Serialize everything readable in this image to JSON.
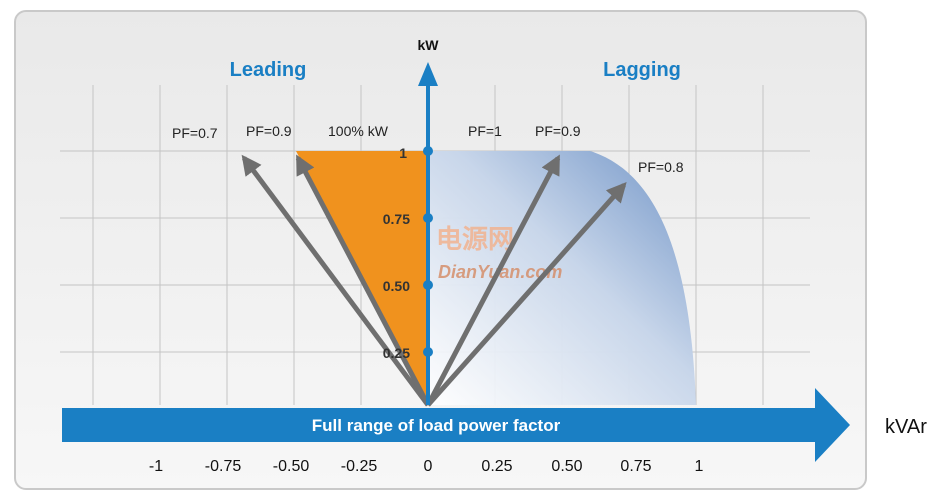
{
  "titles": {
    "leading": "Leading",
    "lagging": "Lagging"
  },
  "axis": {
    "y_label": "kW",
    "x_unit": "kVAr",
    "banner": "Full range of load power factor"
  },
  "x_ticks": [
    "-1",
    "-0.75",
    "-0.50",
    "-0.25",
    "0",
    "0.25",
    "0.50",
    "0.75",
    "1"
  ],
  "y_ticks": [
    "1",
    "0.75",
    "0.50",
    "0.25"
  ],
  "labels": {
    "pf07_lead": "PF=0.7",
    "pf09_lead": "PF=0.9",
    "kw100": "100% kW",
    "pf1": "PF=1",
    "pf09_lag": "PF=0.9",
    "pf08_lag": "PF=0.8"
  },
  "watermark": {
    "cn": "电源网",
    "en": "DianYuan.com"
  },
  "colors": {
    "axis_blue": "#1a7fc4",
    "orange": "#f0921e",
    "arrow_gray": "#6f6f6f",
    "lag_region": "#7f9fcb"
  }
}
